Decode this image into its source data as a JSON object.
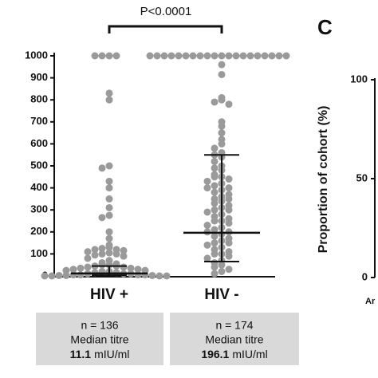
{
  "chart_data": [
    {
      "type": "dotplot",
      "annotation": "P<0.0001",
      "categories": [
        "HIV +",
        "HIV -"
      ],
      "color": "#9a9a9a",
      "ylim": [
        0,
        1000
      ],
      "yticks": [
        0,
        100,
        200,
        300,
        400,
        500,
        600,
        700,
        800,
        900,
        1000
      ],
      "points": [
        [
          1000,
          1000,
          1000,
          1000,
          830,
          800,
          500,
          490,
          430,
          400,
          350,
          310,
          275,
          265,
          200,
          170,
          140,
          130,
          125,
          120,
          120,
          115,
          110,
          105,
          100,
          100,
          95,
          90,
          80,
          70,
          60,
          55,
          50,
          50,
          45,
          45,
          40,
          40,
          35,
          35,
          30,
          30,
          25,
          25,
          20,
          20,
          15,
          15,
          10,
          10,
          10,
          5,
          5,
          5,
          5,
          2,
          2,
          2,
          0,
          0,
          0,
          0
        ],
        [
          1000,
          1000,
          1000,
          1000,
          1000,
          1000,
          1000,
          1000,
          1000,
          1000,
          1000,
          1000,
          1000,
          1000,
          1000,
          1000,
          1000,
          1000,
          1000,
          1000,
          960,
          915,
          810,
          800,
          790,
          780,
          700,
          680,
          650,
          620,
          600,
          580,
          560,
          550,
          540,
          520,
          500,
          490,
          480,
          460,
          450,
          450,
          440,
          430,
          420,
          410,
          400,
          400,
          390,
          380,
          370,
          360,
          350,
          350,
          340,
          330,
          320,
          310,
          300,
          300,
          290,
          280,
          270,
          260,
          250,
          250,
          240,
          230,
          220,
          210,
          200,
          200,
          190,
          180,
          170,
          160,
          150,
          150,
          140,
          130,
          120,
          110,
          100,
          100,
          90,
          80,
          70,
          60,
          50,
          40,
          30,
          20,
          10
        ]
      ],
      "medians": [
        11.1,
        196.1
      ],
      "iqr": [
        [
          3,
          45
        ],
        [
          65,
          550
        ]
      ],
      "notes": [
        {
          "n": "n = 136",
          "label": "Median titre",
          "value": "11.1",
          "unit": "mIU/ml"
        },
        {
          "n": "n = 174",
          "label": "Median titre",
          "value": "196.1",
          "unit": "mIU/ml"
        }
      ]
    },
    {
      "type": "axis",
      "panel": "C",
      "ylabel": "Proportion of cohort (%)",
      "ylim": [
        0,
        100
      ],
      "yticks": [
        0,
        50,
        100
      ],
      "categories": [
        "Ar"
      ]
    }
  ]
}
